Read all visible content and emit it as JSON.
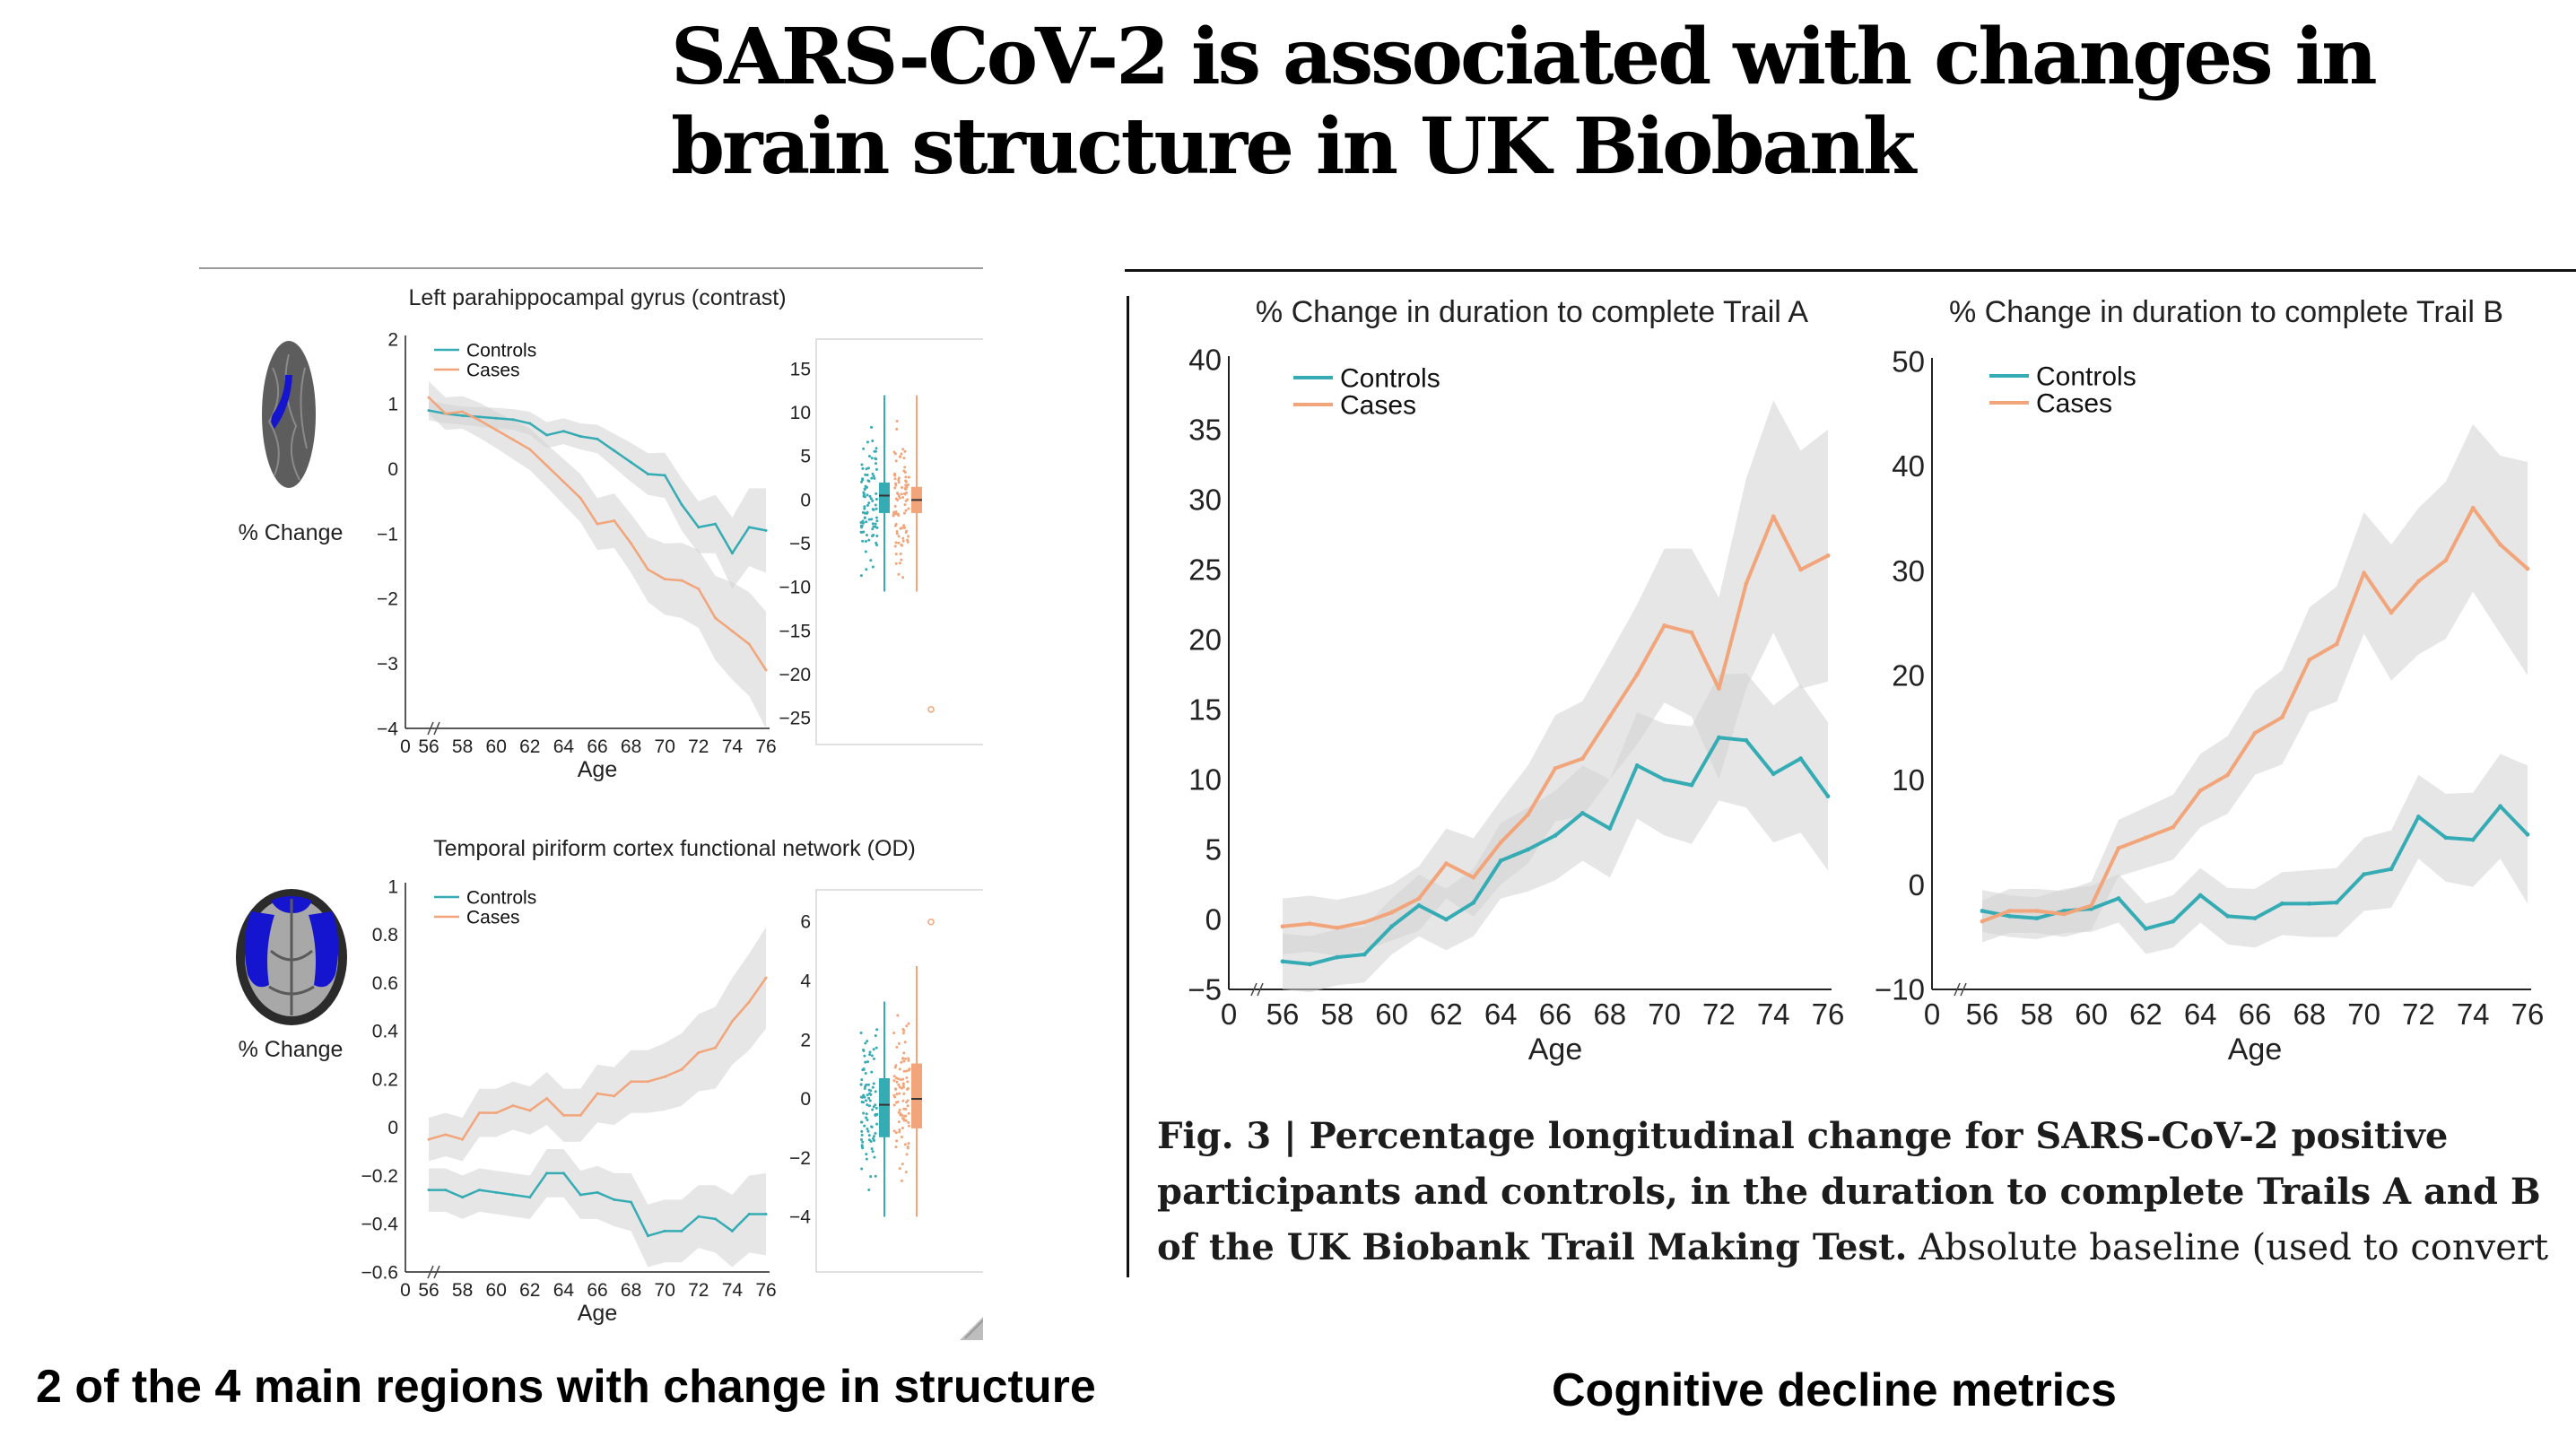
{
  "title": {
    "line1": "SARS-CoV-2 is associated with changes in",
    "line2": "brain structure in UK Biobank"
  },
  "bottom_labels": {
    "left": "2 of the 4 main regions with change in structure",
    "right": "Cognitive decline metrics"
  },
  "caption": {
    "bold": "Fig. 3 | Percentage longitudinal change for SARS-CoV-2 positive participants and controls, in the duration to complete Trails A and B of the UK Biobank Trail Making Test.",
    "normal": "Absolute baseline (used to convert"
  },
  "colors": {
    "controls": "#35abb4",
    "cases": "#f2a57a",
    "ci_band": "#d2d2d2",
    "brain_highlight": "#1515d0"
  },
  "icons": [
    "brain-sagittal-icon",
    "brain-axial-icon"
  ],
  "chart_data": [
    {
      "id": "parahippocampal",
      "type": "line",
      "title": "Left parahippocampal gyrus (contrast)",
      "ylabel": "% Change",
      "xlabel": "Age",
      "x": [
        56,
        57,
        58,
        59,
        60,
        61,
        62,
        63,
        64,
        65,
        66,
        67,
        68,
        69,
        70,
        71,
        72,
        73,
        74,
        75,
        76
      ],
      "x_ticks": [
        0,
        56,
        58,
        60,
        62,
        64,
        66,
        68,
        70,
        72,
        74,
        76
      ],
      "y_ticks": [
        -4,
        -3,
        -2,
        -1,
        0,
        1,
        2
      ],
      "ylim": [
        -4,
        2
      ],
      "legend": "top-left",
      "series": [
        {
          "name": "Controls",
          "values": [
            0.9,
            0.85,
            0.82,
            0.8,
            0.78,
            0.76,
            0.7,
            0.52,
            0.58,
            0.5,
            0.46,
            0.28,
            0.1,
            -0.08,
            -0.1,
            -0.55,
            -0.9,
            -0.85,
            -1.3,
            -0.9,
            -0.95
          ],
          "lower": [
            0.75,
            0.7,
            0.68,
            0.65,
            0.62,
            0.6,
            0.52,
            0.32,
            0.38,
            0.3,
            0.24,
            0.02,
            -0.2,
            -0.4,
            -0.45,
            -0.95,
            -1.3,
            -1.3,
            -1.85,
            -1.5,
            -1.6
          ],
          "upper": [
            1.05,
            1.0,
            0.96,
            0.95,
            0.94,
            0.92,
            0.88,
            0.72,
            0.78,
            0.7,
            0.68,
            0.54,
            0.4,
            0.24,
            0.25,
            -0.15,
            -0.5,
            -0.4,
            -0.75,
            -0.3,
            -0.3
          ]
        },
        {
          "name": "Cases",
          "values": [
            1.1,
            0.85,
            0.88,
            0.75,
            0.6,
            0.45,
            0.3,
            0.05,
            -0.2,
            -0.45,
            -0.85,
            -0.8,
            -1.15,
            -1.55,
            -1.7,
            -1.72,
            -1.85,
            -2.3,
            -2.5,
            -2.7,
            -3.1
          ],
          "lower": [
            0.85,
            0.6,
            0.62,
            0.48,
            0.32,
            0.15,
            -0.02,
            -0.28,
            -0.55,
            -0.82,
            -1.25,
            -1.22,
            -1.6,
            -2.05,
            -2.25,
            -2.3,
            -2.45,
            -2.95,
            -3.25,
            -3.5,
            -4.0
          ],
          "upper": [
            1.35,
            1.1,
            1.12,
            1.02,
            0.88,
            0.75,
            0.62,
            0.38,
            0.15,
            -0.08,
            -0.45,
            -0.38,
            -0.7,
            -1.05,
            -1.15,
            -1.14,
            -1.25,
            -1.65,
            -1.75,
            -1.9,
            -2.2
          ]
        }
      ],
      "boxplot": {
        "y_ticks": [
          15,
          10,
          5,
          0,
          -5,
          -10,
          -15,
          -20,
          -25
        ],
        "ylim": [
          -27,
          17
        ],
        "controls": {
          "q1": -1.5,
          "median": 0.5,
          "q3": 2,
          "min": -10.5,
          "max": 12
        },
        "cases": {
          "q1": -1.5,
          "median": 0,
          "q3": 1.5,
          "min": -10.5,
          "max": 12
        },
        "outlier_cases": -24
      }
    },
    {
      "id": "piriform",
      "type": "line",
      "title": "Temporal piriform cortex functional network (OD)",
      "ylabel": "% Change",
      "xlabel": "Age",
      "x": [
        56,
        57,
        58,
        59,
        60,
        61,
        62,
        63,
        64,
        65,
        66,
        67,
        68,
        69,
        70,
        71,
        72,
        73,
        74,
        75,
        76
      ],
      "x_ticks": [
        0,
        56,
        58,
        60,
        62,
        64,
        66,
        68,
        70,
        72,
        74,
        76
      ],
      "y_ticks": [
        -0.6,
        -0.4,
        -0.2,
        0,
        0.2,
        0.4,
        0.6,
        0.8,
        1
      ],
      "ylim": [
        -0.6,
        1
      ],
      "legend": "top-left",
      "series": [
        {
          "name": "Controls",
          "values": [
            -0.26,
            -0.26,
            -0.29,
            -0.26,
            -0.27,
            -0.28,
            -0.29,
            -0.19,
            -0.19,
            -0.28,
            -0.27,
            -0.3,
            -0.31,
            -0.45,
            -0.43,
            -0.43,
            -0.37,
            -0.38,
            -0.43,
            -0.36,
            -0.36
          ],
          "lower": [
            -0.35,
            -0.35,
            -0.38,
            -0.35,
            -0.36,
            -0.37,
            -0.38,
            -0.29,
            -0.29,
            -0.38,
            -0.38,
            -0.41,
            -0.43,
            -0.58,
            -0.56,
            -0.56,
            -0.5,
            -0.52,
            -0.58,
            -0.52,
            -0.53
          ],
          "upper": [
            -0.17,
            -0.17,
            -0.2,
            -0.17,
            -0.18,
            -0.19,
            -0.2,
            -0.09,
            -0.09,
            -0.18,
            -0.16,
            -0.19,
            -0.19,
            -0.32,
            -0.3,
            -0.3,
            -0.24,
            -0.24,
            -0.28,
            -0.2,
            -0.19
          ]
        },
        {
          "name": "Cases",
          "values": [
            -0.05,
            -0.03,
            -0.05,
            0.06,
            0.06,
            0.09,
            0.07,
            0.12,
            0.05,
            0.05,
            0.14,
            0.13,
            0.19,
            0.19,
            0.21,
            0.24,
            0.31,
            0.33,
            0.44,
            0.52,
            0.62
          ],
          "lower": [
            -0.14,
            -0.12,
            -0.14,
            -0.04,
            -0.04,
            -0.01,
            -0.03,
            0.01,
            -0.06,
            -0.06,
            0.02,
            0.01,
            0.06,
            0.06,
            0.07,
            0.09,
            0.15,
            0.16,
            0.26,
            0.32,
            0.41
          ],
          "upper": [
            0.04,
            0.06,
            0.04,
            0.16,
            0.16,
            0.19,
            0.17,
            0.23,
            0.16,
            0.16,
            0.26,
            0.25,
            0.32,
            0.32,
            0.35,
            0.39,
            0.47,
            0.5,
            0.62,
            0.72,
            0.83
          ]
        }
      ],
      "boxplot": {
        "y_ticks": [
          6,
          4,
          2,
          0,
          -2,
          -4
        ],
        "ylim": [
          -5.2,
          6.6
        ],
        "controls": {
          "q1": -1.3,
          "median": -0.2,
          "q3": 0.7,
          "min": -4,
          "max": 3.3
        },
        "cases": {
          "q1": -1,
          "median": 0,
          "q3": 1.2,
          "min": -4,
          "max": 4.5
        },
        "outlier_cases": 6
      }
    },
    {
      "id": "trail-a",
      "type": "line",
      "title": "% Change in duration to complete Trail A",
      "xlabel": "Age",
      "x": [
        56,
        57,
        58,
        59,
        60,
        61,
        62,
        63,
        64,
        65,
        66,
        67,
        68,
        69,
        70,
        71,
        72,
        73,
        74,
        75,
        76
      ],
      "x_ticks": [
        0,
        56,
        58,
        60,
        62,
        64,
        66,
        68,
        70,
        72,
        74,
        76
      ],
      "y_ticks": [
        -5,
        0,
        5,
        10,
        15,
        20,
        25,
        30,
        35,
        40
      ],
      "ylim": [
        -5,
        40
      ],
      "legend": "top-left",
      "series": [
        {
          "name": "Controls",
          "values": [
            -3.0,
            -3.2,
            -2.7,
            -2.5,
            -0.5,
            1.0,
            0.0,
            1.2,
            4.2,
            5.0,
            6.0,
            7.6,
            6.5,
            11.0,
            10.0,
            9.6,
            13.0,
            12.8,
            10.4,
            11.5,
            8.8
          ],
          "lower": [
            -5.0,
            -5.2,
            -4.7,
            -4.5,
            -2.5,
            -1.2,
            -2.2,
            -1.2,
            1.5,
            2.0,
            2.8,
            4.2,
            3.0,
            7.2,
            6.0,
            5.4,
            8.5,
            8.0,
            5.5,
            6.2,
            3.5
          ],
          "upper": [
            -1.0,
            -1.2,
            -0.7,
            -0.5,
            1.5,
            3.2,
            2.2,
            3.6,
            6.9,
            8.0,
            9.2,
            11.0,
            10.0,
            14.8,
            14.0,
            13.8,
            17.5,
            17.6,
            15.3,
            16.8,
            14.1
          ]
        },
        {
          "name": "Cases",
          "values": [
            -0.5,
            -0.3,
            -0.6,
            -0.2,
            0.5,
            1.5,
            4.0,
            3.0,
            5.5,
            7.5,
            10.8,
            11.5,
            14.5,
            17.5,
            21.0,
            20.5,
            16.5,
            24.0,
            28.8,
            25.0,
            26.0
          ],
          "lower": [
            -2.5,
            -2.3,
            -2.6,
            -2.2,
            -1.5,
            -0.8,
            1.5,
            0.2,
            2.5,
            4.0,
            7.0,
            7.4,
            10.0,
            12.5,
            15.5,
            14.5,
            10.0,
            16.5,
            20.5,
            16.5,
            17.0
          ],
          "upper": [
            1.5,
            1.7,
            1.4,
            1.8,
            2.5,
            3.8,
            6.5,
            5.8,
            8.5,
            11.0,
            14.6,
            15.6,
            19.0,
            22.5,
            26.5,
            26.5,
            23.0,
            31.5,
            37.1,
            33.5,
            35.0
          ]
        }
      ]
    },
    {
      "id": "trail-b",
      "type": "line",
      "title": "% Change in duration to complete Trail B",
      "xlabel": "Age",
      "x": [
        56,
        57,
        58,
        59,
        60,
        61,
        62,
        63,
        64,
        65,
        66,
        67,
        68,
        69,
        70,
        71,
        72,
        73,
        74,
        75,
        76
      ],
      "x_ticks": [
        0,
        56,
        58,
        60,
        62,
        64,
        66,
        68,
        70,
        72,
        74,
        76
      ],
      "y_ticks": [
        -10,
        0,
        10,
        20,
        30,
        40,
        50
      ],
      "ylim": [
        -10,
        50
      ],
      "legend": "top-left",
      "series": [
        {
          "name": "Controls",
          "values": [
            -2.5,
            -3.0,
            -3.2,
            -2.5,
            -2.3,
            -1.3,
            -4.2,
            -3.5,
            -1.0,
            -3.0,
            -3.2,
            -1.8,
            -1.8,
            -1.7,
            1.0,
            1.5,
            6.5,
            4.5,
            4.3,
            7.5,
            4.8
          ],
          "lower": [
            -4.5,
            -5.0,
            -5.2,
            -4.6,
            -4.5,
            -3.6,
            -6.6,
            -6.0,
            -3.6,
            -5.7,
            -6.0,
            -4.8,
            -5.0,
            -5.0,
            -2.5,
            -2.2,
            2.5,
            0.3,
            -0.2,
            2.5,
            -1.8
          ],
          "upper": [
            -0.5,
            -1.0,
            -1.2,
            -0.4,
            -0.1,
            1.0,
            -1.8,
            -1.0,
            1.6,
            -0.3,
            -0.4,
            1.2,
            1.4,
            1.6,
            4.5,
            5.2,
            10.5,
            8.7,
            8.8,
            12.5,
            11.4
          ]
        },
        {
          "name": "Cases",
          "values": [
            -3.5,
            -2.5,
            -2.5,
            -2.8,
            -2.0,
            3.5,
            4.5,
            5.5,
            9.0,
            10.5,
            14.5,
            16.0,
            21.5,
            23.0,
            29.8,
            26.0,
            29.0,
            31.0,
            36.0,
            32.5,
            30.2
          ],
          "lower": [
            -5.5,
            -4.6,
            -4.6,
            -5.0,
            -4.3,
            0.8,
            1.6,
            2.4,
            5.5,
            6.8,
            10.5,
            11.5,
            16.5,
            17.5,
            24.0,
            19.5,
            22.0,
            23.5,
            28.0,
            24.0,
            20.0
          ],
          "upper": [
            -1.5,
            -0.4,
            -0.4,
            -0.6,
            0.3,
            6.2,
            7.4,
            8.6,
            12.5,
            14.2,
            18.5,
            20.5,
            26.5,
            28.5,
            35.6,
            32.5,
            36.0,
            38.5,
            44.0,
            41.0,
            40.4
          ]
        }
      ]
    }
  ]
}
